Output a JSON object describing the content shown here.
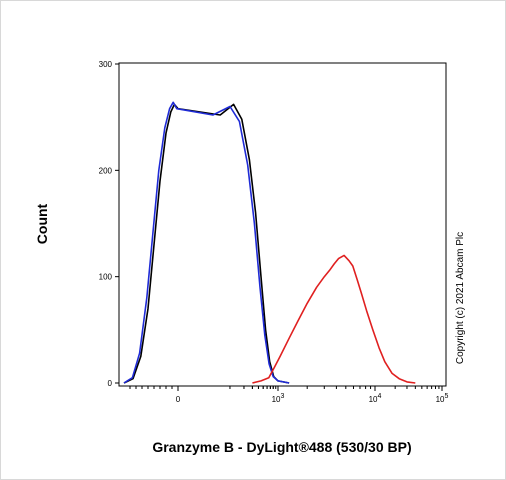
{
  "chart_data": {
    "type": "line",
    "xlabel": "Granzyme B - DyLight®488 (530/30 BP)",
    "ylabel": "Count",
    "ylim": [
      0,
      300
    ],
    "yticks": [
      0,
      100,
      200,
      300
    ],
    "x_scale": "biexponential",
    "xticks": [
      {
        "base": "0",
        "exp": ""
      },
      {
        "base": "10",
        "exp": "3"
      },
      {
        "base": "10",
        "exp": "4"
      },
      {
        "base": "10",
        "exp": "5"
      }
    ],
    "annotation": "Copyright (c) 2021 Abcam Plc",
    "grid": false,
    "legend": "none",
    "series": [
      {
        "color": "#000000",
        "points": [
          [
            -900,
            0
          ],
          [
            -750,
            4
          ],
          [
            -620,
            25
          ],
          [
            -500,
            70
          ],
          [
            -400,
            130
          ],
          [
            -300,
            190
          ],
          [
            -200,
            235
          ],
          [
            -120,
            255
          ],
          [
            -60,
            262
          ],
          [
            0,
            258
          ],
          [
            60,
            252
          ],
          [
            120,
            262
          ],
          [
            180,
            248
          ],
          [
            260,
            210
          ],
          [
            350,
            160
          ],
          [
            450,
            100
          ],
          [
            560,
            50
          ],
          [
            680,
            20
          ],
          [
            820,
            6
          ],
          [
            1000,
            2
          ],
          [
            1300,
            0
          ]
        ]
      },
      {
        "color": "#1f2bd6",
        "points": [
          [
            -900,
            0
          ],
          [
            -760,
            5
          ],
          [
            -640,
            28
          ],
          [
            -520,
            80
          ],
          [
            -420,
            140
          ],
          [
            -320,
            200
          ],
          [
            -220,
            240
          ],
          [
            -140,
            258
          ],
          [
            -80,
            264
          ],
          [
            -20,
            258
          ],
          [
            40,
            252
          ],
          [
            100,
            260
          ],
          [
            160,
            246
          ],
          [
            240,
            205
          ],
          [
            330,
            150
          ],
          [
            430,
            90
          ],
          [
            540,
            45
          ],
          [
            660,
            18
          ],
          [
            800,
            6
          ],
          [
            1000,
            2
          ],
          [
            1300,
            0
          ]
        ]
      },
      {
        "color": "#e02020",
        "points": [
          [
            300,
            0
          ],
          [
            450,
            2
          ],
          [
            650,
            5
          ],
          [
            850,
            15
          ],
          [
            1050,
            25
          ],
          [
            1300,
            42
          ],
          [
            1600,
            58
          ],
          [
            2000,
            75
          ],
          [
            2500,
            90
          ],
          [
            3000,
            100
          ],
          [
            3400,
            106
          ],
          [
            3800,
            112
          ],
          [
            4200,
            117
          ],
          [
            4800,
            120
          ],
          [
            5400,
            115
          ],
          [
            5900,
            110
          ],
          [
            6500,
            98
          ],
          [
            7200,
            85
          ],
          [
            8200,
            68
          ],
          [
            9500,
            50
          ],
          [
            11500,
            33
          ],
          [
            14000,
            20
          ],
          [
            18000,
            9
          ],
          [
            23000,
            4
          ],
          [
            30000,
            1
          ],
          [
            40000,
            0
          ]
        ]
      }
    ]
  }
}
